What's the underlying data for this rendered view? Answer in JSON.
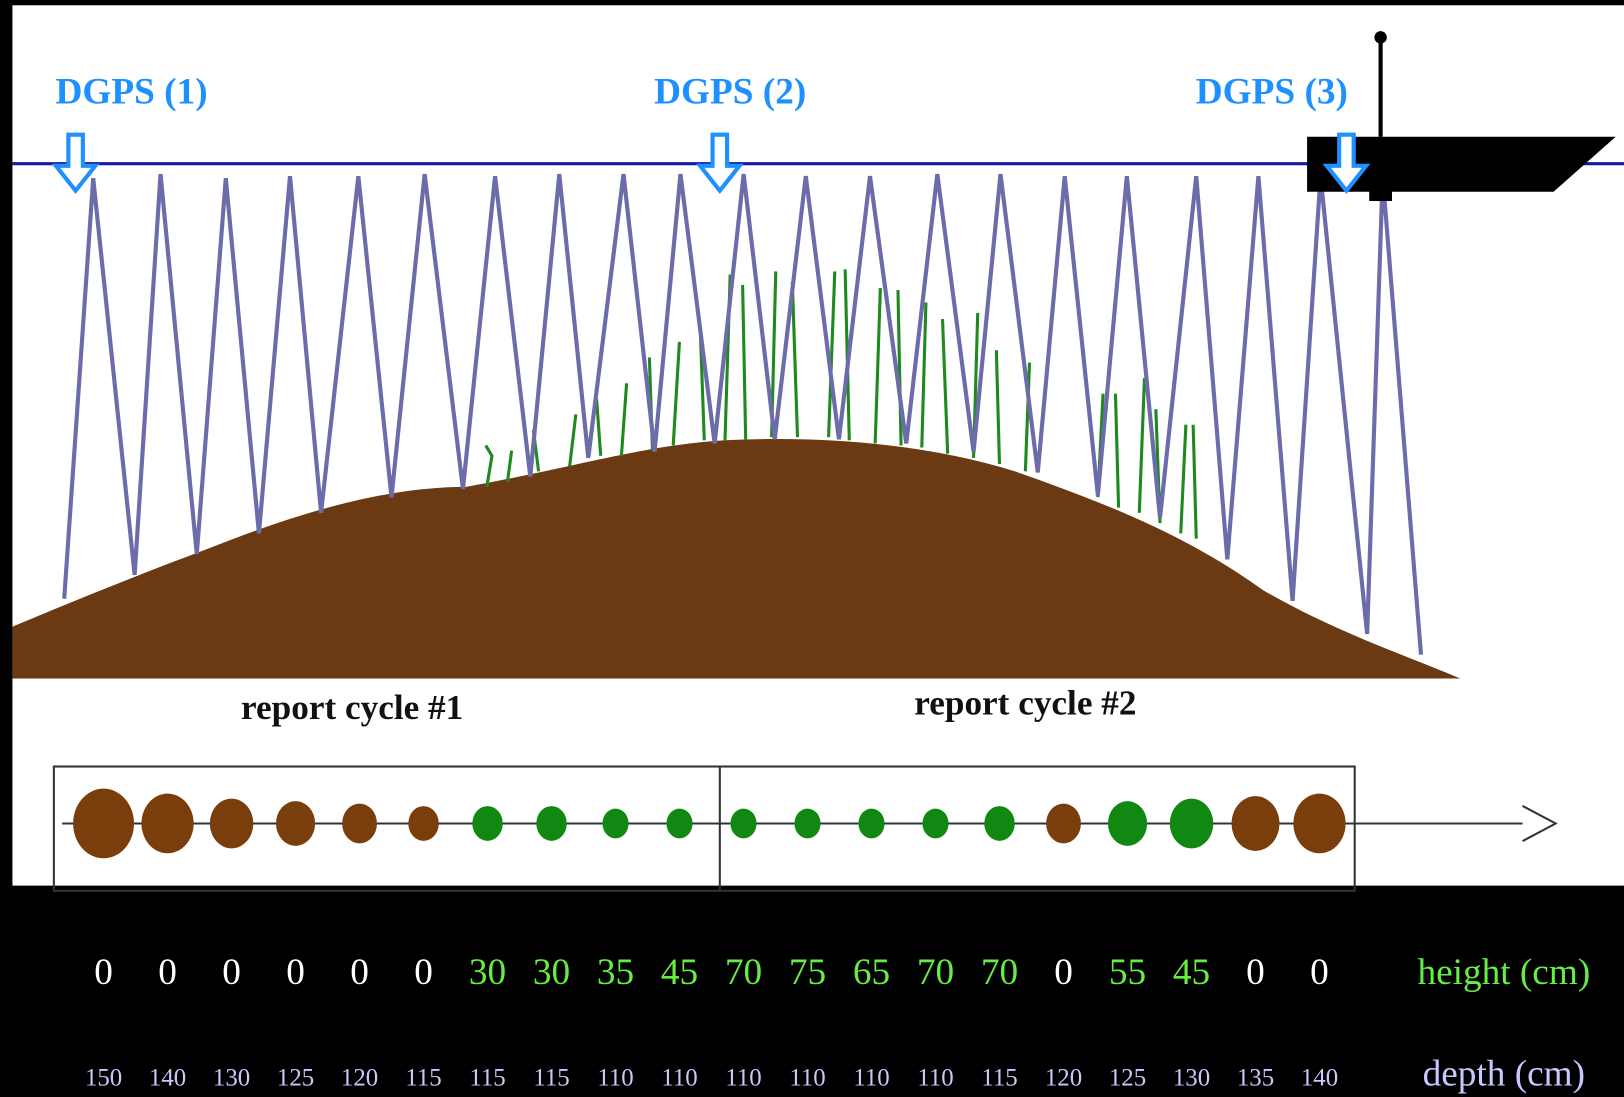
{
  "dgps_labels": [
    "DGPS (1)",
    "DGPS (2)",
    "DGPS (3)"
  ],
  "report_cycles": [
    "report cycle #1",
    "report cycle #2"
  ],
  "height": {
    "label": "height (cm)",
    "values": [
      0,
      0,
      0,
      0,
      0,
      0,
      30,
      30,
      35,
      45,
      70,
      75,
      65,
      70,
      70,
      0,
      55,
      45,
      0,
      0
    ]
  },
  "depth": {
    "label": "depth (cm)",
    "values": [
      150,
      140,
      130,
      125,
      120,
      115,
      115,
      115,
      110,
      110,
      110,
      110,
      110,
      110,
      115,
      120,
      125,
      130,
      135,
      140
    ]
  }
}
